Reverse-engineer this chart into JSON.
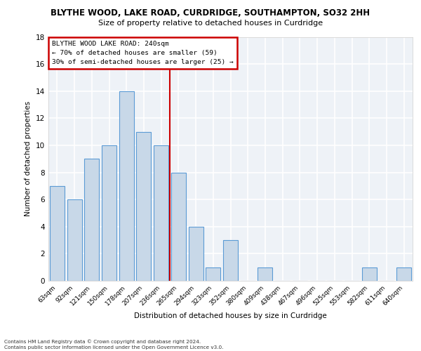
{
  "title1": "BLYTHE WOOD, LAKE ROAD, CURDRIDGE, SOUTHAMPTON, SO32 2HH",
  "title2": "Size of property relative to detached houses in Curdridge",
  "xlabel": "Distribution of detached houses by size in Curdridge",
  "ylabel": "Number of detached properties",
  "categories": [
    "63sqm",
    "92sqm",
    "121sqm",
    "150sqm",
    "178sqm",
    "207sqm",
    "236sqm",
    "265sqm",
    "294sqm",
    "323sqm",
    "352sqm",
    "380sqm",
    "409sqm",
    "438sqm",
    "467sqm",
    "496sqm",
    "525sqm",
    "553sqm",
    "582sqm",
    "611sqm",
    "640sqm"
  ],
  "values": [
    7,
    6,
    9,
    10,
    14,
    11,
    10,
    8,
    4,
    1,
    3,
    0,
    1,
    0,
    0,
    0,
    0,
    0,
    1,
    0,
    1
  ],
  "bar_color": "#c8d8e8",
  "bar_edge_color": "#5b9bd5",
  "vline_x": 6.5,
  "vline_color": "#cc0000",
  "annotation_text": "BLYTHE WOOD LAKE ROAD: 240sqm\n← 70% of detached houses are smaller (59)\n30% of semi-detached houses are larger (25) →",
  "annotation_box_color": "#ffffff",
  "annotation_box_edge_color": "#cc0000",
  "ylim": [
    0,
    18
  ],
  "yticks": [
    0,
    2,
    4,
    6,
    8,
    10,
    12,
    14,
    16,
    18
  ],
  "background_color": "#eef2f7",
  "grid_color": "#ffffff",
  "footer_line1": "Contains HM Land Registry data © Crown copyright and database right 2024.",
  "footer_line2": "Contains public sector information licensed under the Open Government Licence v3.0."
}
